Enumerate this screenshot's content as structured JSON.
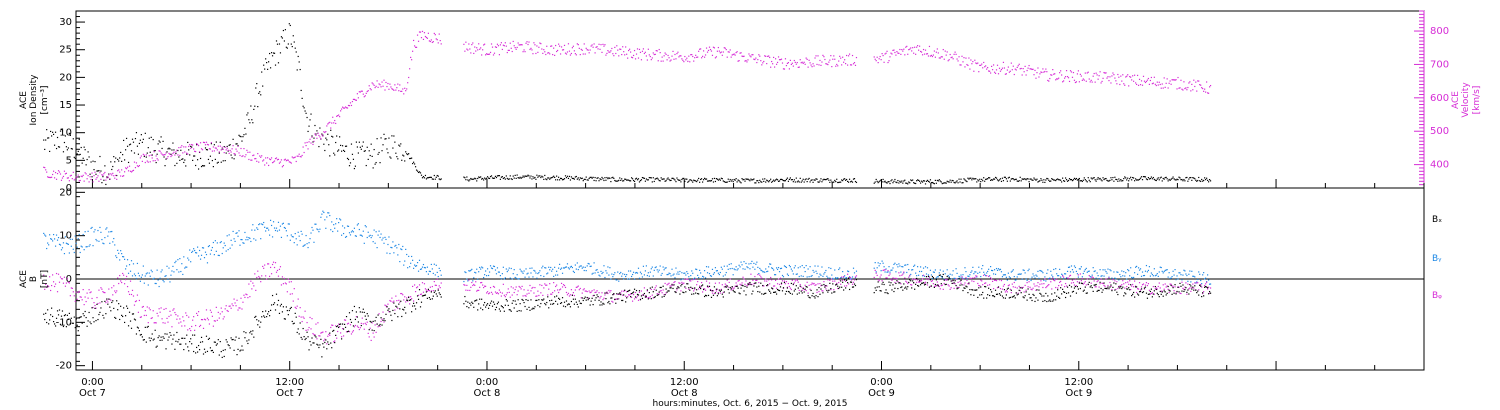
{
  "chart_data": [
    {
      "type": "scatter",
      "panel": "top",
      "ylabel_left": [
        "ACE",
        "Ion Density",
        "[cm⁻³]"
      ],
      "ylabel_right": [
        "ACE",
        "Velocity",
        "[km/s]"
      ],
      "ylim_left": [
        0,
        32
      ],
      "yticks_left": [
        0,
        5,
        10,
        15,
        20,
        25,
        30
      ],
      "ylim_right": [
        330,
        860
      ],
      "yticks_right": [
        400,
        500,
        600,
        700,
        800
      ],
      "series": [
        {
          "axis": "left",
          "color": "#000000",
          "x": [
            -3,
            -2,
            -1,
            0,
            1,
            2,
            3,
            4,
            5,
            6,
            7,
            8,
            9,
            9.5,
            10,
            10.5,
            11,
            11.5,
            12,
            12.5,
            13,
            13.5,
            14,
            15,
            16,
            17,
            18,
            19,
            20,
            21,
            22,
            23,
            24,
            26,
            28,
            30,
            32,
            34,
            36,
            38,
            40,
            42,
            44,
            46,
            48,
            50,
            52,
            54,
            56,
            58,
            60,
            62,
            64,
            66,
            68
          ],
          "y": [
            8,
            9,
            7,
            4,
            3,
            7,
            8,
            7,
            6,
            6,
            6,
            6,
            9,
            12,
            17,
            21,
            24,
            26,
            28,
            22,
            13,
            10,
            9,
            7,
            6,
            6,
            8,
            7,
            2.2,
            2.0,
            1.8,
            1.7,
            1.9,
            2.1,
            2.0,
            1.8,
            1.6,
            1.6,
            1.5,
            1.5,
            1.4,
            1.6,
            1.5,
            1.5,
            1.3,
            1.2,
            1.3,
            1.6,
            1.7,
            1.5,
            1.6,
            1.7,
            1.8,
            1.7,
            1.6
          ]
        },
        {
          "axis": "right",
          "color": "#d62cd6",
          "x": [
            -3,
            -2,
            -1,
            0,
            1,
            2,
            3,
            4,
            5,
            6,
            7,
            8,
            9,
            10,
            11,
            12,
            12.5,
            13,
            14,
            15,
            16,
            17,
            18,
            19,
            19.5,
            20,
            21,
            22,
            24,
            26,
            28,
            30,
            32,
            34,
            36,
            38,
            40,
            42,
            44,
            46,
            48,
            50,
            52,
            54,
            56,
            58,
            60,
            62,
            64,
            66,
            68
          ],
          "y": [
            380,
            370,
            365,
            365,
            365,
            380,
            420,
            430,
            440,
            450,
            455,
            450,
            440,
            420,
            410,
            410,
            420,
            460,
            500,
            550,
            600,
            640,
            640,
            620,
            760,
            790,
            780,
            760,
            745,
            755,
            745,
            750,
            740,
            730,
            725,
            740,
            720,
            705,
            710,
            715,
            720,
            750,
            730,
            690,
            690,
            670,
            665,
            660,
            650,
            645,
            630
          ]
        }
      ]
    },
    {
      "type": "scatter",
      "panel": "bottom",
      "ylabel_left": [
        "ACE",
        "B",
        "[nT]"
      ],
      "ylim": [
        -21,
        21
      ],
      "yticks": [
        -20,
        -10,
        0,
        10,
        20
      ],
      "legend": [
        "Bₓ",
        "Bᵧ",
        "Bᵩ"
      ],
      "legend_position": "right",
      "series": [
        {
          "name": "Bₓ",
          "color": "#000000",
          "x": [
            -3,
            -2,
            -1,
            0,
            1,
            2,
            3,
            4,
            5,
            6,
            7,
            8,
            9,
            10,
            11,
            12,
            13,
            14,
            15,
            16,
            17,
            18,
            19,
            20,
            21,
            22,
            24,
            26,
            28,
            30,
            32,
            34,
            36,
            38,
            40,
            42,
            44,
            46,
            48,
            50,
            52,
            54,
            56,
            58,
            60,
            62,
            64,
            66,
            68
          ],
          "y": [
            -8,
            -9,
            -10,
            -8,
            -6,
            -8,
            -12,
            -14,
            -14,
            -15,
            -15,
            -16,
            -15,
            -10,
            -5,
            -8,
            -14,
            -16,
            -12,
            -8,
            -10,
            -8,
            -6,
            -4,
            -3,
            -5,
            -6,
            -6,
            -5,
            -5,
            -4,
            -3,
            -2,
            -3,
            -2,
            -2,
            -3,
            -1,
            -2,
            -1,
            0,
            -3,
            -3,
            -4,
            -2,
            -2,
            -3,
            -2,
            -3
          ]
        },
        {
          "name": "Bᵧ",
          "color": "#1e88e5",
          "x": [
            -3,
            -2,
            -1,
            0,
            1,
            2,
            3,
            4,
            5,
            6,
            7,
            8,
            9,
            10,
            11,
            12,
            13,
            14,
            15,
            16,
            17,
            18,
            19,
            20,
            21,
            22,
            24,
            26,
            28,
            30,
            32,
            34,
            36,
            38,
            40,
            42,
            44,
            46,
            48,
            50,
            52,
            54,
            56,
            58,
            60,
            62,
            64,
            66,
            68
          ],
          "y": [
            9,
            8,
            8,
            10,
            10,
            3,
            1,
            0,
            2,
            5,
            6,
            8,
            10,
            11,
            12,
            11,
            8,
            14,
            12,
            11,
            10,
            8,
            5,
            3,
            2,
            0,
            2,
            1,
            2,
            3,
            1,
            2,
            1,
            2,
            3,
            2,
            2,
            1,
            3,
            2,
            1,
            2,
            1,
            1,
            2,
            1,
            2,
            1,
            0
          ]
        },
        {
          "name": "Bᵩ",
          "color": "#d62cd6",
          "x": [
            -3,
            -2,
            -1,
            0,
            1,
            2,
            3,
            4,
            5,
            6,
            7,
            8,
            9,
            10,
            11,
            12,
            13,
            14,
            15,
            16,
            17,
            18,
            19,
            20,
            21,
            22,
            24,
            26,
            28,
            30,
            32,
            34,
            36,
            38,
            40,
            42,
            44,
            46,
            48,
            50,
            52,
            54,
            56,
            58,
            60,
            62,
            64,
            66,
            68
          ],
          "y": [
            0,
            -1,
            -3,
            -5,
            -3,
            0,
            -8,
            -8,
            -9,
            -10,
            -9,
            -8,
            -5,
            0,
            3,
            -2,
            -10,
            -13,
            -12,
            -10,
            -12,
            -6,
            -4,
            -2,
            -1,
            -1,
            -2,
            -3,
            -2,
            -3,
            -4,
            -3,
            -1,
            -2,
            0,
            -1,
            -2,
            0,
            1,
            0,
            -1,
            0,
            -2,
            -1,
            0,
            -1,
            -2,
            -2,
            -2
          ]
        }
      ]
    }
  ],
  "xaxis": {
    "ticks_hours": [
      0,
      12,
      24,
      36,
      48,
      60
    ],
    "tick_labels": [
      [
        "0:00",
        "Oct 7"
      ],
      [
        "12:00",
        "Oct 7"
      ],
      [
        "0:00",
        "Oct 8"
      ],
      [
        "12:00",
        "Oct 8"
      ],
      [
        "0:00",
        "Oct 9"
      ],
      [
        "12:00",
        "Oct 9"
      ]
    ],
    "range_hours": [
      -1,
      81
    ],
    "title": "hours:minutes,  Oct.  6, 2015 − Oct.  9, 2015"
  }
}
